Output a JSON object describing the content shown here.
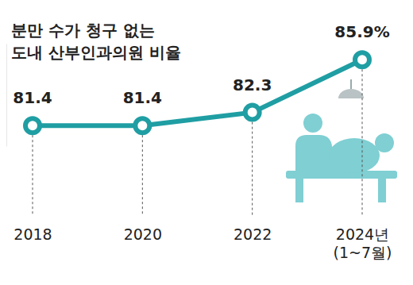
{
  "chart_data": {
    "type": "line",
    "title": "분만 수가 청구 없는\n도내 산부인과의원 비율",
    "categories": [
      "2018",
      "2020",
      "2022",
      "2024년\n(1~7월)"
    ],
    "values": [
      81.4,
      81.4,
      82.3,
      85.9
    ],
    "value_labels": [
      "81.4",
      "81.4",
      "82.3",
      "85.9%"
    ],
    "color": "#1f9ea3",
    "marker": "circle",
    "ylim": [
      80,
      87
    ],
    "yticks": [],
    "grid": false,
    "data_labels": true,
    "tick_labels": "x"
  }
}
